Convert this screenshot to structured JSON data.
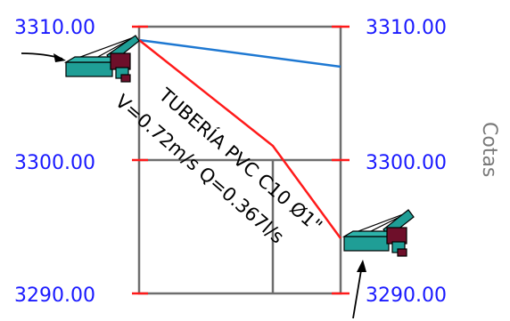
{
  "diagram": {
    "axis_title": "Cotas",
    "elevation_labels": {
      "left": [
        "3310.00",
        "3300.00",
        "3290.00"
      ],
      "right": [
        "3310.00",
        "3300.00",
        "3290.00"
      ]
    },
    "pipe_label": {
      "line1": "TUBERÍA PVC C10 Ø1\"",
      "line2": "V=0.72m/s Q=0.367l/s"
    },
    "colors": {
      "elevation_text": "#1a1aff",
      "terrain_line": "#ff1a1a",
      "hydraulic_line": "#1e78d2",
      "frame": "#6e6e6e",
      "tick": "#ff1a1a",
      "structure_body": "#1f9e96",
      "structure_dark": "#6e0f2a"
    },
    "icons": [
      "inlet-structure-icon",
      "outlet-structure-icon"
    ]
  }
}
